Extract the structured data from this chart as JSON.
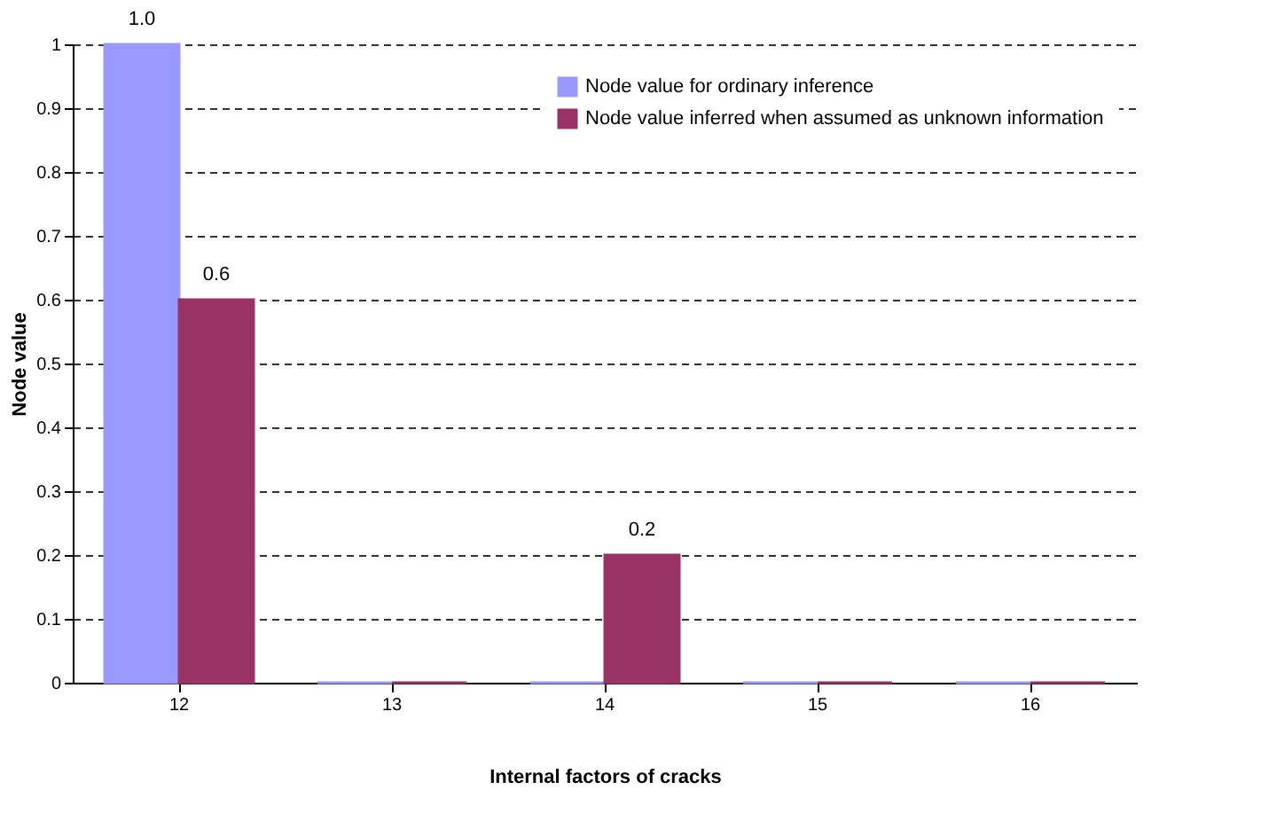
{
  "chart_data": {
    "type": "bar",
    "xlabel": "Internal factors of cracks",
    "ylabel": "Node value",
    "categories": [
      "12",
      "13",
      "14",
      "15",
      "16"
    ],
    "series": [
      {
        "name": "Node value for ordinary inference",
        "color": "#9999ff",
        "values": [
          1,
          0,
          0,
          0,
          0
        ],
        "value_labels": [
          "1.0",
          null,
          null,
          null,
          null
        ]
      },
      {
        "name": "Node value inferred when assumed as unknown information",
        "color": "#993366",
        "values": [
          0.6,
          0,
          0.2,
          0,
          0
        ],
        "value_labels": [
          "0.6",
          null,
          "0.2",
          null,
          null
        ]
      }
    ],
    "ylim": [
      0,
      1
    ],
    "yticks": [
      0,
      0.1,
      0.2,
      0.3,
      0.4,
      0.5,
      0.6,
      0.7,
      0.8,
      0.9,
      1
    ],
    "grid": "y",
    "legend": "top right"
  }
}
